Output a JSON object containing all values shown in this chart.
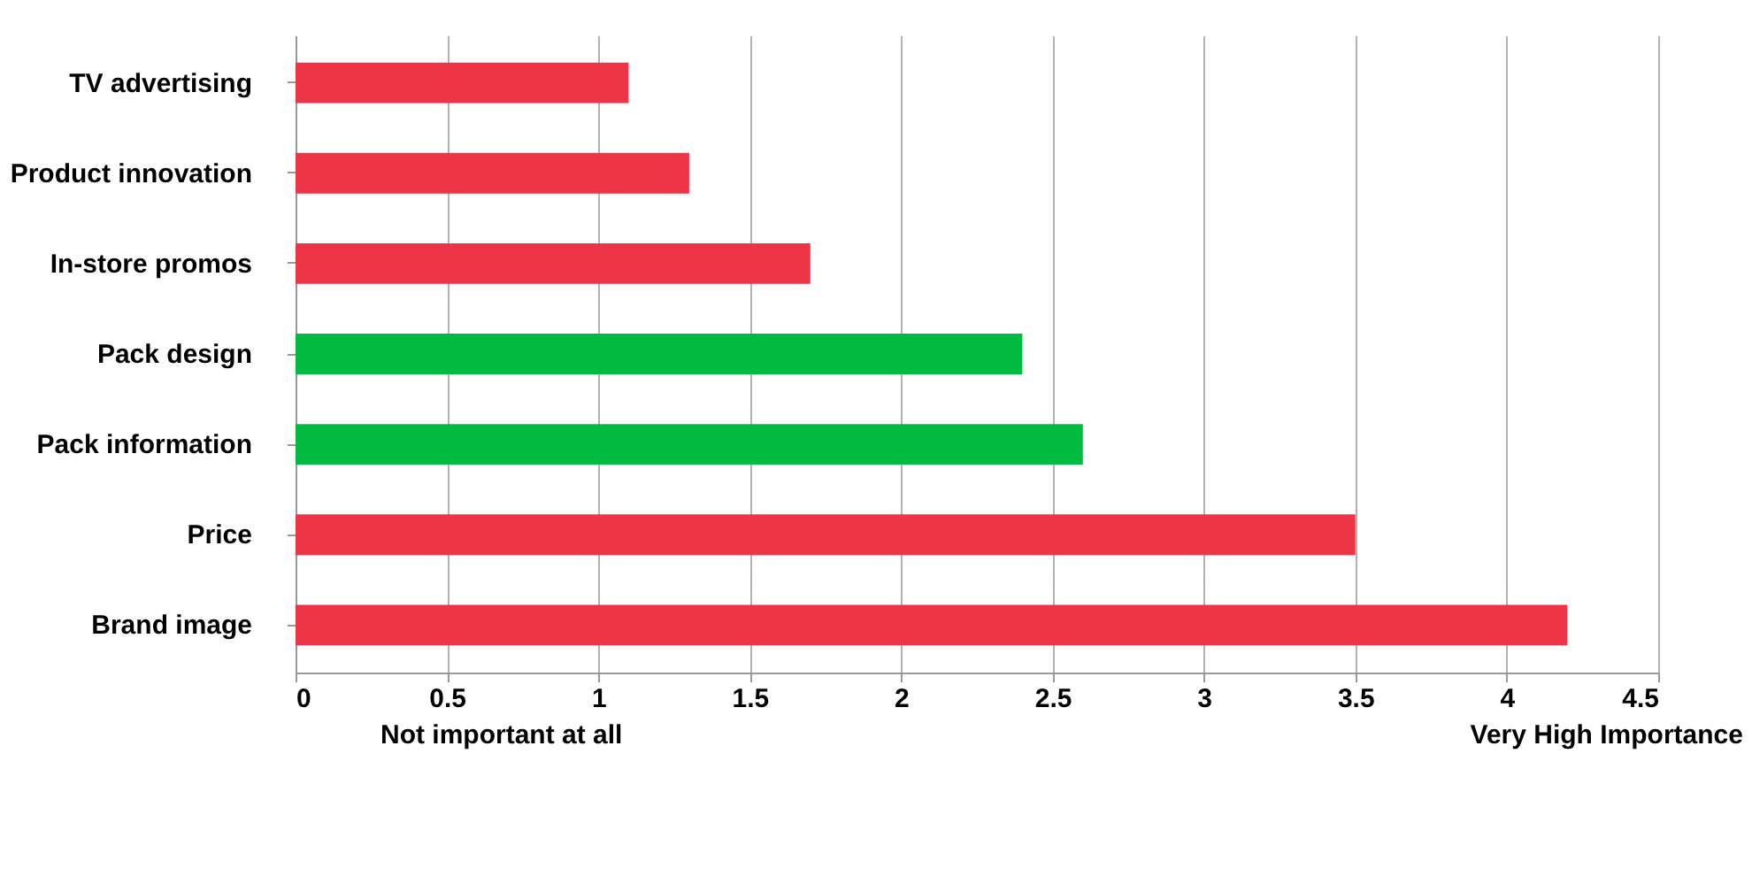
{
  "chart_data": {
    "type": "bar",
    "orientation": "horizontal",
    "categories": [
      "TV advertising",
      "Product innovation",
      "In-store promos",
      "Pack design",
      "Pack information",
      "Price",
      "Brand image"
    ],
    "values": [
      1.1,
      1.3,
      1.7,
      2.4,
      2.6,
      3.5,
      4.2
    ],
    "colors": [
      "#ee3548",
      "#ee3548",
      "#ee3548",
      "#00bb40",
      "#00bb40",
      "#ee3548",
      "#ee3548"
    ],
    "xlim": [
      0,
      4.5
    ],
    "xticks": [
      0,
      0.5,
      1,
      1.5,
      2,
      2.5,
      3,
      3.5,
      4,
      4.5
    ],
    "grid": "x",
    "annotations": [
      "Not important at all",
      "Very High Importance"
    ]
  }
}
